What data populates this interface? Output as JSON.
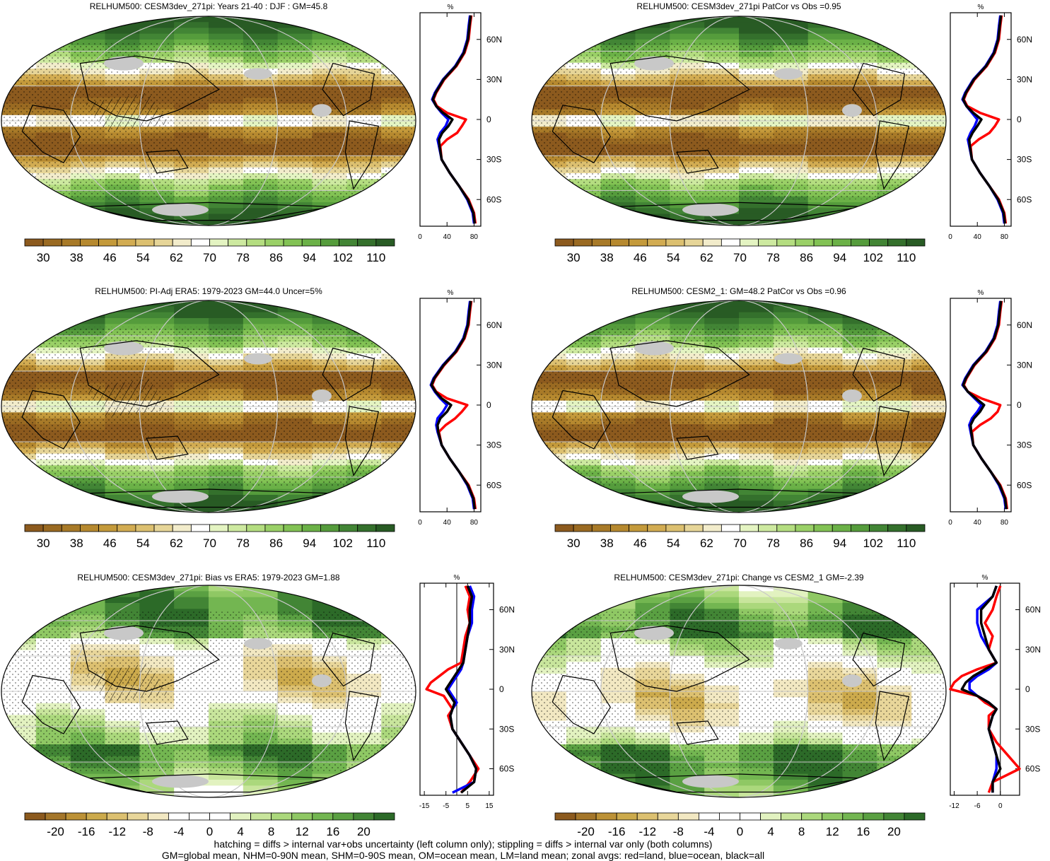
{
  "footnotes": [
    "hatching = diffs > internal var+obs uncertainty (left column only); stippling = diffs > internal var only (both columns)",
    "GM=global mean, NHM=0-90N mean, SHM=0-90S mean, OM=ocean mean, LM=land mean; zonal avgs: red=land, blue=ocean, black=all"
  ],
  "colors": {
    "land": "#ff0000",
    "ocean": "#0000ff",
    "all": "#000000",
    "missing": "#c8c8c8",
    "full_palette": [
      "#8c5a1e",
      "#9a6a22",
      "#a87a28",
      "#b6892f",
      "#c49a3b",
      "#d2ac52",
      "#dcc070",
      "#e6d598",
      "#f2eccb",
      "#ffffff",
      "#e4f4c2",
      "#cde9a0",
      "#b4dd80",
      "#9ad067",
      "#82c254",
      "#6bb147",
      "#559c3c",
      "#428535",
      "#34702c",
      "#285b24"
    ],
    "diff_palette": [
      "#8c5a1e",
      "#a4762a",
      "#bc9136",
      "#ccaa4c",
      "#dcc070",
      "#e8d69a",
      "#f2e8c2",
      "#ffffff",
      "#ffffff",
      "#ffffff",
      "#e2f2c0",
      "#c8e59c",
      "#abd87c",
      "#8fc864",
      "#73b651",
      "#5aa042",
      "#428535",
      "#2c6a28"
    ]
  },
  "chart_data": [
    {
      "type": "heatmap",
      "title": "RELHUM500: CESM3dev_271pi: Years 21-40 : DJF : GM=45.8",
      "colorbar_labels": [
        "30",
        "38",
        "46",
        "54",
        "62",
        "70",
        "78",
        "86",
        "94",
        "102",
        "110"
      ],
      "zonal_profile": {
        "type": "line",
        "unit": "%",
        "xticks": [
          "0",
          "40",
          "80"
        ],
        "xlim": [
          0,
          90
        ],
        "yticks": [
          "60N",
          "30N",
          "0",
          "30S",
          "60S"
        ],
        "ylim": [
          -80,
          80
        ],
        "lat": [
          78,
          70,
          60,
          50,
          40,
          30,
          20,
          15,
          10,
          5,
          0,
          -5,
          -10,
          -15,
          -20,
          -30,
          -40,
          -50,
          -60,
          -70,
          -78
        ],
        "series": [
          {
            "name": "land",
            "values": [
              76,
              74,
              72,
              66,
              54,
              36,
              24,
              20,
              25,
              40,
              68,
              62,
              55,
              40,
              30,
              32,
              44,
              58,
              72,
              80,
              82
            ]
          },
          {
            "name": "ocean",
            "values": [
              74,
              72,
              70,
              64,
              52,
              34,
              22,
              18,
              24,
              32,
              42,
              38,
              30,
              26,
              28,
              32,
              44,
              58,
              70,
              78,
              80
            ]
          },
          {
            "name": "all",
            "values": [
              75,
              73,
              71,
              65,
              53,
              35,
              23,
              19,
              24,
              34,
              48,
              42,
              33,
              28,
              29,
              32,
              44,
              58,
              71,
              79,
              81
            ]
          }
        ]
      }
    },
    {
      "type": "heatmap",
      "title": "RELHUM500: CESM3dev_271pi PatCor vs Obs =0.95",
      "colorbar_labels": [
        "30",
        "38",
        "46",
        "54",
        "62",
        "70",
        "78",
        "86",
        "94",
        "102",
        "110"
      ],
      "zonal_profile": {
        "type": "line",
        "unit": "%",
        "xticks": [
          "0",
          "40",
          "80"
        ],
        "xlim": [
          0,
          90
        ],
        "yticks": [
          "60N",
          "30N",
          "0",
          "30S",
          "60S"
        ],
        "ylim": [
          -80,
          80
        ],
        "lat": [
          78,
          70,
          60,
          50,
          40,
          30,
          20,
          15,
          10,
          5,
          0,
          -5,
          -10,
          -15,
          -20,
          -30,
          -40,
          -50,
          -60,
          -70,
          -78
        ],
        "series": [
          {
            "name": "land",
            "values": [
              76,
              74,
              72,
              66,
              54,
              36,
              24,
              20,
              25,
              44,
              72,
              66,
              58,
              42,
              30,
              32,
              44,
              58,
              72,
              80,
              82
            ]
          },
          {
            "name": "ocean",
            "values": [
              74,
              72,
              70,
              64,
              52,
              34,
              22,
              18,
              24,
              32,
              40,
              36,
              30,
              26,
              28,
              32,
              44,
              58,
              70,
              78,
              80
            ]
          },
          {
            "name": "all",
            "values": [
              75,
              73,
              71,
              65,
              53,
              35,
              23,
              19,
              24,
              34,
              46,
              40,
              33,
              28,
              29,
              32,
              44,
              58,
              71,
              79,
              81
            ]
          }
        ]
      }
    },
    {
      "type": "heatmap",
      "title": "RELHUM500: PI-Adj ERA5: 1979-2023 GM=44.0 Uncer=5%",
      "colorbar_labels": [
        "30",
        "38",
        "46",
        "54",
        "62",
        "70",
        "78",
        "86",
        "94",
        "102",
        "110"
      ],
      "zonal_profile": {
        "type": "line",
        "unit": "%",
        "xticks": [
          "0",
          "40",
          "80"
        ],
        "xlim": [
          0,
          90
        ],
        "yticks": [
          "60N",
          "30N",
          "0",
          "30S",
          "60S"
        ],
        "ylim": [
          -80,
          80
        ],
        "lat": [
          78,
          70,
          60,
          50,
          40,
          30,
          20,
          15,
          10,
          5,
          0,
          -5,
          -10,
          -15,
          -20,
          -30,
          -40,
          -50,
          -60,
          -70,
          -78
        ],
        "series": [
          {
            "name": "land",
            "values": [
              76,
              74,
              72,
              66,
              54,
              36,
              22,
              18,
              24,
              40,
              70,
              62,
              52,
              38,
              28,
              32,
              44,
              58,
              72,
              80,
              82
            ]
          },
          {
            "name": "ocean",
            "values": [
              74,
              72,
              70,
              64,
              52,
              34,
              20,
              16,
              22,
              30,
              40,
              34,
              26,
              24,
              26,
              32,
              44,
              58,
              70,
              78,
              80
            ]
          },
          {
            "name": "all",
            "values": [
              75,
              73,
              71,
              65,
              53,
              35,
              21,
              17,
              23,
              32,
              46,
              40,
              30,
              26,
              27,
              32,
              44,
              58,
              71,
              79,
              81
            ]
          }
        ]
      }
    },
    {
      "type": "heatmap",
      "title": "RELHUM500: CESM2_1: GM=48.2 PatCor vs Obs =0.96",
      "colorbar_labels": [
        "30",
        "38",
        "46",
        "54",
        "62",
        "70",
        "78",
        "86",
        "94",
        "102",
        "110"
      ],
      "zonal_profile": {
        "type": "line",
        "unit": "%",
        "xticks": [
          "0",
          "40",
          "80"
        ],
        "xlim": [
          0,
          90
        ],
        "yticks": [
          "60N",
          "30N",
          "0",
          "30S",
          "60S"
        ],
        "ylim": [
          -80,
          80
        ],
        "lat": [
          78,
          70,
          60,
          50,
          40,
          30,
          20,
          15,
          10,
          5,
          0,
          -5,
          -10,
          -15,
          -20,
          -30,
          -40,
          -50,
          -60,
          -70,
          -78
        ],
        "series": [
          {
            "name": "land",
            "values": [
              76,
              74,
              72,
              66,
              54,
              36,
              24,
              20,
              26,
              46,
              74,
              70,
              60,
              44,
              32,
              34,
              46,
              60,
              74,
              82,
              84
            ]
          },
          {
            "name": "ocean",
            "values": [
              74,
              72,
              70,
              64,
              52,
              34,
              22,
              18,
              26,
              36,
              46,
              40,
              32,
              28,
              30,
              34,
              46,
              60,
              72,
              80,
              82
            ]
          },
          {
            "name": "all",
            "values": [
              75,
              73,
              71,
              65,
              53,
              35,
              23,
              19,
              26,
              38,
              50,
              44,
              35,
              30,
              31,
              34,
              46,
              60,
              73,
              81,
              83
            ]
          }
        ]
      }
    },
    {
      "type": "heatmap",
      "title": "RELHUM500: CESM3dev_271pi: Bias vs ERA5: 1979-2023 GM=1.88",
      "colorbar_labels": [
        "-20",
        "-16",
        "-12",
        "-8",
        "-4",
        "0",
        "4",
        "8",
        "12",
        "16",
        "20"
      ],
      "zonal_profile": {
        "type": "line",
        "unit": "%",
        "xticks": [
          "-15",
          "-5",
          "5",
          "15"
        ],
        "xlim": [
          -17,
          17
        ],
        "zero_line": 0,
        "yticks": [
          "60N",
          "30N",
          "0",
          "30S",
          "60S"
        ],
        "ylim": [
          -80,
          80
        ],
        "lat": [
          78,
          70,
          60,
          50,
          40,
          30,
          20,
          15,
          10,
          5,
          0,
          -5,
          -10,
          -15,
          -20,
          -30,
          -40,
          -50,
          -60,
          -70,
          -78
        ],
        "series": [
          {
            "name": "land",
            "values": [
              4,
              6,
              5,
              6,
              4,
              3,
              2,
              -4,
              -8,
              -12,
              -14,
              -6,
              -4,
              -2,
              -4,
              -2,
              2,
              6,
              10,
              6,
              2
            ]
          },
          {
            "name": "ocean",
            "values": [
              6,
              8,
              7,
              7,
              5,
              4,
              3,
              2,
              0,
              -2,
              -4,
              -2,
              0,
              -2,
              -3,
              -2,
              2,
              6,
              9,
              8,
              -2
            ]
          },
          {
            "name": "all",
            "values": [
              5,
              7,
              6,
              6,
              5,
              4,
              3,
              1,
              -1,
              -3,
              -5,
              -3,
              -1,
              -2,
              -3,
              -2,
              2,
              6,
              9,
              8,
              2
            ]
          }
        ]
      }
    },
    {
      "type": "heatmap",
      "title": "RELHUM500: CESM3dev_271pi: Change vs CESM2_1 GM=-2.39",
      "colorbar_labels": [
        "-20",
        "-16",
        "-12",
        "-8",
        "-4",
        "0",
        "4",
        "8",
        "12",
        "16",
        "20"
      ],
      "zonal_profile": {
        "type": "line",
        "unit": "%",
        "xticks": [
          "-12",
          "-6",
          "0"
        ],
        "xlim": [
          -13,
          5
        ],
        "zero_line": 0,
        "yticks": [
          "60N",
          "30N",
          "0",
          "30S",
          "60S"
        ],
        "ylim": [
          -80,
          80
        ],
        "lat": [
          78,
          70,
          60,
          50,
          40,
          30,
          20,
          15,
          10,
          5,
          0,
          -5,
          -10,
          -15,
          -20,
          -30,
          -40,
          -50,
          -60,
          -70,
          -78
        ],
        "series": [
          {
            "name": "land",
            "values": [
              0,
              -1,
              -2,
              -4,
              -2,
              -3,
              -1,
              -6,
              -10,
              -12,
              -13,
              -6,
              -4,
              -1,
              -3,
              -3,
              -1,
              2,
              5,
              -2,
              -3
            ]
          },
          {
            "name": "ocean",
            "values": [
              -1,
              -2,
              -6,
              -6,
              -5,
              -3,
              -1,
              -3,
              -6,
              -8,
              -8,
              -6,
              -3,
              -1,
              -2,
              -3,
              -2,
              -1,
              -1,
              -2,
              -2
            ]
          },
          {
            "name": "all",
            "values": [
              -1,
              -2,
              -5,
              -5,
              -4,
              -3,
              -1,
              -4,
              -7,
              -9,
              -10,
              -6,
              -3,
              -1,
              -2,
              -3,
              -2,
              -1,
              0,
              -2,
              -2
            ]
          }
        ]
      }
    }
  ]
}
